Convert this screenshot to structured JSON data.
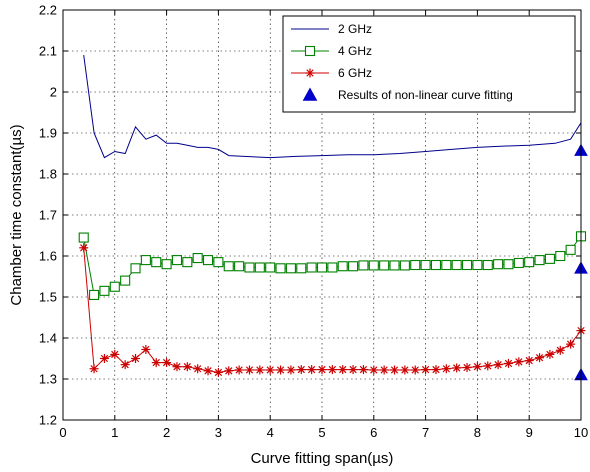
{
  "chart_data": {
    "type": "line",
    "title": "",
    "xlabel": "Curve fitting span(µs)",
    "ylabel": "Chamber time constant(µs)",
    "xlim": [
      0,
      10
    ],
    "ylim": [
      1.2,
      2.2
    ],
    "xticks": [
      "0",
      "1",
      "2",
      "3",
      "4",
      "5",
      "6",
      "7",
      "8",
      "9",
      "10"
    ],
    "yticks": [
      "1.2",
      "1.3",
      "1.4",
      "1.5",
      "1.6",
      "1.7",
      "1.8",
      "1.9",
      "2",
      "2.1",
      "2.2"
    ],
    "grid": true,
    "legend_position": "top-right",
    "series": [
      {
        "name": "2 GHz",
        "color": "#00008b",
        "marker": "none",
        "x": [
          0.4,
          0.6,
          0.8,
          1.0,
          1.2,
          1.4,
          1.6,
          1.8,
          2.0,
          2.2,
          2.4,
          2.6,
          2.8,
          3.0,
          3.2,
          3.5,
          4.0,
          4.5,
          5.0,
          5.5,
          6.0,
          6.5,
          7.0,
          7.5,
          8.0,
          8.5,
          9.0,
          9.5,
          9.8,
          10.0
        ],
        "values": [
          2.09,
          1.9,
          1.84,
          1.855,
          1.85,
          1.915,
          1.885,
          1.895,
          1.875,
          1.875,
          1.87,
          1.865,
          1.865,
          1.86,
          1.845,
          1.843,
          1.84,
          1.843,
          1.845,
          1.847,
          1.847,
          1.85,
          1.855,
          1.86,
          1.865,
          1.868,
          1.87,
          1.875,
          1.885,
          1.925
        ]
      },
      {
        "name": "4 GHz",
        "color": "#008000",
        "marker": "square",
        "x": [
          0.4,
          0.6,
          0.8,
          1.0,
          1.2,
          1.4,
          1.6,
          1.8,
          2.0,
          2.2,
          2.4,
          2.6,
          2.8,
          3.0,
          3.2,
          3.4,
          3.6,
          3.8,
          4.0,
          4.2,
          4.4,
          4.6,
          4.8,
          5.0,
          5.2,
          5.4,
          5.6,
          5.8,
          6.0,
          6.2,
          6.4,
          6.6,
          6.8,
          7.0,
          7.2,
          7.4,
          7.6,
          7.8,
          8.0,
          8.2,
          8.4,
          8.6,
          8.8,
          9.0,
          9.2,
          9.4,
          9.6,
          9.8,
          10.0
        ],
        "values": [
          1.645,
          1.505,
          1.515,
          1.525,
          1.54,
          1.57,
          1.59,
          1.585,
          1.58,
          1.59,
          1.585,
          1.595,
          1.59,
          1.585,
          1.575,
          1.575,
          1.572,
          1.572,
          1.572,
          1.57,
          1.57,
          1.57,
          1.572,
          1.572,
          1.572,
          1.575,
          1.575,
          1.577,
          1.577,
          1.577,
          1.577,
          1.577,
          1.578,
          1.578,
          1.578,
          1.578,
          1.578,
          1.578,
          1.578,
          1.578,
          1.58,
          1.58,
          1.583,
          1.585,
          1.59,
          1.593,
          1.6,
          1.615,
          1.648
        ]
      },
      {
        "name": "6 GHz",
        "color": "#cc0000",
        "marker": "asterisk",
        "x": [
          0.4,
          0.6,
          0.8,
          1.0,
          1.2,
          1.4,
          1.6,
          1.8,
          2.0,
          2.2,
          2.4,
          2.6,
          2.8,
          3.0,
          3.2,
          3.4,
          3.6,
          3.8,
          4.0,
          4.2,
          4.4,
          4.6,
          4.8,
          5.0,
          5.2,
          5.4,
          5.6,
          5.8,
          6.0,
          6.2,
          6.4,
          6.6,
          6.8,
          7.0,
          7.2,
          7.4,
          7.6,
          7.8,
          8.0,
          8.2,
          8.4,
          8.6,
          8.8,
          9.0,
          9.2,
          9.4,
          9.6,
          9.8,
          10.0
        ],
        "values": [
          1.62,
          1.325,
          1.35,
          1.36,
          1.335,
          1.35,
          1.372,
          1.34,
          1.34,
          1.33,
          1.33,
          1.325,
          1.32,
          1.316,
          1.32,
          1.322,
          1.322,
          1.322,
          1.322,
          1.322,
          1.322,
          1.323,
          1.323,
          1.323,
          1.323,
          1.323,
          1.323,
          1.323,
          1.322,
          1.322,
          1.322,
          1.322,
          1.322,
          1.323,
          1.323,
          1.325,
          1.327,
          1.328,
          1.33,
          1.332,
          1.335,
          1.338,
          1.342,
          1.345,
          1.352,
          1.36,
          1.37,
          1.385,
          1.418
        ]
      }
    ],
    "fit_points": {
      "name": "Results of non-linear curve fitting",
      "color": "#0000cc",
      "marker": "triangle",
      "x": [
        10,
        10,
        10
      ],
      "values": [
        1.857,
        1.57,
        1.31
      ]
    }
  }
}
